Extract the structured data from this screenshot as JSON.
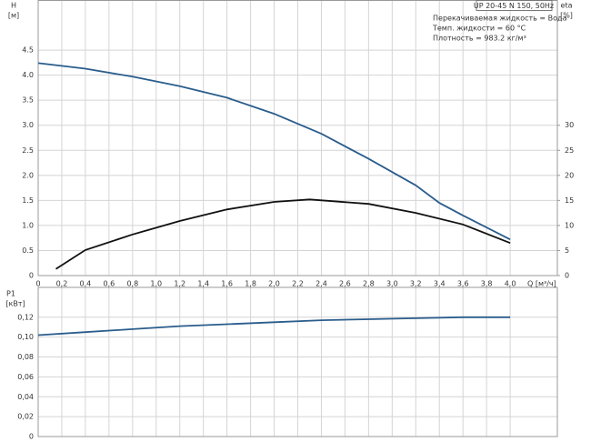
{
  "chart_data": [
    {
      "type": "line",
      "title": "UP 20-45 N 150, 50Hz",
      "annotations": [
        "Перекачиваемая жидкость = Вода",
        "Темп. жидкости = 60 °C",
        "Плотность = 983.2 кг/м³"
      ],
      "ylabel": "H",
      "yunit": "[м]",
      "y2label": "eta",
      "y2unit": "[%]",
      "xlabel": "Q [м³/ч]",
      "xlim": [
        0,
        4.4
      ],
      "xticks": [
        0,
        {
          "value": 0.2,
          "label": "0,2"
        },
        {
          "value": 0.4,
          "label": "0,4"
        },
        {
          "value": 0.6,
          "label": "0,6"
        },
        {
          "value": 0.8,
          "label": "0,8"
        },
        {
          "value": 1,
          "label": "1,0"
        },
        {
          "value": 1.2,
          "label": "1,2"
        },
        {
          "value": 1.4,
          "label": "1,4"
        },
        {
          "value": 1.6,
          "label": "1,6"
        },
        {
          "value": 1.8,
          "label": "1,8"
        },
        {
          "value": 2,
          "label": "2,0"
        },
        {
          "value": 2.2,
          "label": "2,2"
        },
        {
          "value": 2.4,
          "label": "2,4"
        },
        {
          "value": 2.6,
          "label": "2,6"
        },
        {
          "value": 2.8,
          "label": "2,8"
        },
        {
          "value": 3,
          "label": "3,0"
        },
        {
          "value": 3.2,
          "label": "3,2"
        },
        {
          "value": 3.4,
          "label": "3,4"
        },
        {
          "value": 3.6,
          "label": "3,6"
        },
        {
          "value": 3.8,
          "label": "3,8"
        },
        {
          "value": 4,
          "label": "4,0"
        }
      ],
      "ylim": [
        0,
        5.5
      ],
      "yticks": [
        0,
        0.5,
        {
          "value": 1,
          "label": "1.0"
        },
        1.5,
        {
          "value": 2,
          "label": "2.0"
        },
        2.5,
        {
          "value": 3,
          "label": "3.0"
        },
        3.5,
        {
          "value": 4,
          "label": "4.0"
        },
        4.5
      ],
      "y2lim": [
        0,
        55
      ],
      "y2ticks": [
        0,
        5,
        10,
        15,
        20,
        25,
        30
      ],
      "grid": true,
      "series": [
        {
          "color": "#2a5d8c",
          "x": [
            0,
            0.4,
            0.8,
            1.2,
            1.6,
            2.0,
            2.4,
            2.8,
            3.2,
            3.4,
            3.6,
            4.0
          ],
          "values": [
            4.24,
            4.13,
            3.97,
            3.78,
            3.55,
            3.23,
            2.83,
            2.33,
            1.8,
            1.45,
            1.2,
            0.72
          ]
        },
        {
          "color": "#111111",
          "axis": "y2",
          "x": [
            0.15,
            0.4,
            0.8,
            1.2,
            1.6,
            2.0,
            2.3,
            2.8,
            3.2,
            3.6,
            4.0
          ],
          "values": [
            1.3,
            5.1,
            8.2,
            10.9,
            13.2,
            14.7,
            15.2,
            14.3,
            12.5,
            10.2,
            6.5
          ]
        }
      ]
    },
    {
      "type": "line",
      "ylabel": "P1",
      "yunit": "[кВт]",
      "xlim": [
        0,
        4.4
      ],
      "xticks": [
        0,
        0.2,
        0.4,
        0.6,
        0.8,
        1,
        1.2,
        1.4,
        1.6,
        1.8,
        2,
        2.2,
        2.4,
        2.6,
        2.8,
        3,
        3.2,
        3.4,
        3.6,
        3.8,
        4
      ],
      "xtick_labels": false,
      "ylim": [
        0,
        0.15
      ],
      "yticks": [
        0,
        {
          "value": 0.02,
          "label": "0,02"
        },
        {
          "value": 0.04,
          "label": "0,04"
        },
        {
          "value": 0.06,
          "label": "0,06"
        },
        {
          "value": 0.08,
          "label": "0,08"
        },
        {
          "value": 0.1,
          "label": "0,10"
        },
        {
          "value": 0.12,
          "label": "0,12"
        }
      ],
      "grid": true,
      "series": [
        {
          "color": "#2a5d8c",
          "x": [
            0,
            0.4,
            0.8,
            1.2,
            1.6,
            2.0,
            2.4,
            2.8,
            3.2,
            3.6,
            4.0
          ],
          "values": [
            0.102,
            0.105,
            0.108,
            0.111,
            0.113,
            0.115,
            0.117,
            0.118,
            0.119,
            0.12,
            0.12
          ]
        }
      ]
    }
  ]
}
